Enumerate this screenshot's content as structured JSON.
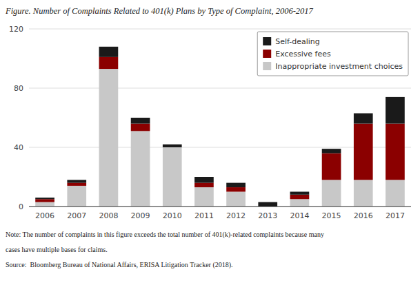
{
  "chart_data": {
    "type": "bar",
    "stacked": true,
    "title": "Figure. Number of Complaints Related to 401(k) Plans by Type of Complaint, 2006-2017",
    "annotations": [
      "Note: The number of complaints in this figure exceeds the total number of 401(k)-related complaints because many",
      "cases have multiple bases for claims.",
      "Source:  Bloomberg Bureau of National Affairs, ERISA Litigation Tracker (2018)."
    ],
    "categories": [
      "2006",
      "2007",
      "2008",
      "2009",
      "2010",
      "2011",
      "2012",
      "2013",
      "2014",
      "2015",
      "2016",
      "2017"
    ],
    "series": [
      {
        "name": "Inappropriate investment choices",
        "color": "#c8c8c8",
        "values": [
          3,
          14,
          93,
          51,
          40,
          13,
          10,
          0,
          5,
          18,
          18,
          18
        ]
      },
      {
        "name": "Excessive fees",
        "color": "#8b0000",
        "values": [
          2,
          2,
          8,
          5,
          0,
          3,
          3,
          0,
          3,
          18,
          38,
          38
        ]
      },
      {
        "name": "Self-dealing",
        "color": "#1a1a1a",
        "values": [
          1,
          2,
          7,
          4,
          2,
          4,
          3,
          3,
          2,
          3,
          7,
          18
        ]
      }
    ],
    "ylim": [
      0,
      120
    ],
    "yticks": [
      0,
      40,
      80,
      120
    ],
    "grid": true,
    "legend": "upper right"
  }
}
